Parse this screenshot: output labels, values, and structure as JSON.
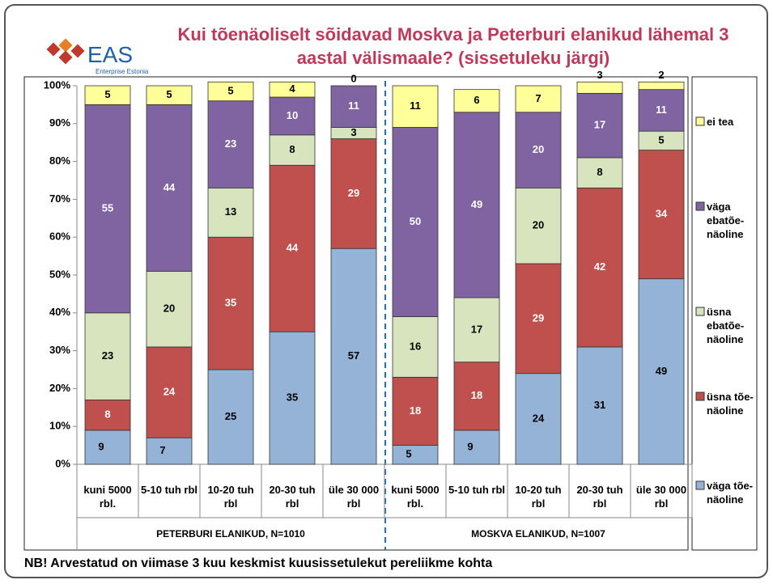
{
  "chart_data": {
    "type": "stacked_bar",
    "title": "Kui tõenäoliselt sõidavad Moskva ja Peterburi elanikud lähemal 3 aastal välismaale? (sissetuleku järgi)",
    "logo": "EAS",
    "logo_subtitle": "Enterprise Estonia",
    "footnote": "NB! Arvestatud on viimase 3 kuu keskmist kuusissetulekut pereliikme kohta",
    "categories": [
      "kuni 5000 rbl.",
      "5-10 tuh rbl",
      "10-20 tuh rbl",
      "20-30 tuh rbl",
      "üle 30 000 rbl",
      "kuni 5000 rbl.",
      "5-10 tuh rbl",
      "10-20 tuh rbl",
      "20-30 tuh rbl",
      "üle 30 000 rbl"
    ],
    "groups": [
      "PETERBURI ELANIKUD, N=1010",
      "MOSKVA ELANIKUD, N=1007"
    ],
    "series": [
      {
        "name": "väga tõe-näoline",
        "color": "#95b3d7",
        "values": [
          9,
          7,
          25,
          35,
          57,
          5,
          9,
          24,
          31,
          49
        ]
      },
      {
        "name": "üsna tõe-näoline",
        "color": "#c0504d",
        "values": [
          8,
          24,
          35,
          44,
          29,
          18,
          18,
          29,
          42,
          34
        ]
      },
      {
        "name": "üsna ebatõe-näoline",
        "color": "#d7e4bd",
        "values": [
          23,
          20,
          13,
          8,
          3,
          16,
          17,
          20,
          8,
          5
        ]
      },
      {
        "name": "väga ebatõe-näoline",
        "color": "#8064a2",
        "values": [
          55,
          44,
          23,
          10,
          11,
          50,
          49,
          20,
          17,
          11
        ]
      },
      {
        "name": "ei tea",
        "color": "#ffff99",
        "values": [
          5,
          5,
          5,
          4,
          0,
          11,
          6,
          7,
          3,
          2
        ]
      }
    ],
    "ylim": [
      0,
      100
    ],
    "yticks": [
      {
        "value": 0,
        "label": "0%"
      },
      {
        "value": 10,
        "label": "10%"
      },
      {
        "value": 20,
        "label": "20%"
      },
      {
        "value": 30,
        "label": "30%"
      },
      {
        "value": 40,
        "label": "40%"
      },
      {
        "value": 50,
        "label": "50%"
      },
      {
        "value": 60,
        "label": "60%"
      },
      {
        "value": 70,
        "label": "70%"
      },
      {
        "value": 80,
        "label": "80%"
      },
      {
        "value": 90,
        "label": "90%"
      },
      {
        "value": 100,
        "label": "100%"
      }
    ]
  }
}
